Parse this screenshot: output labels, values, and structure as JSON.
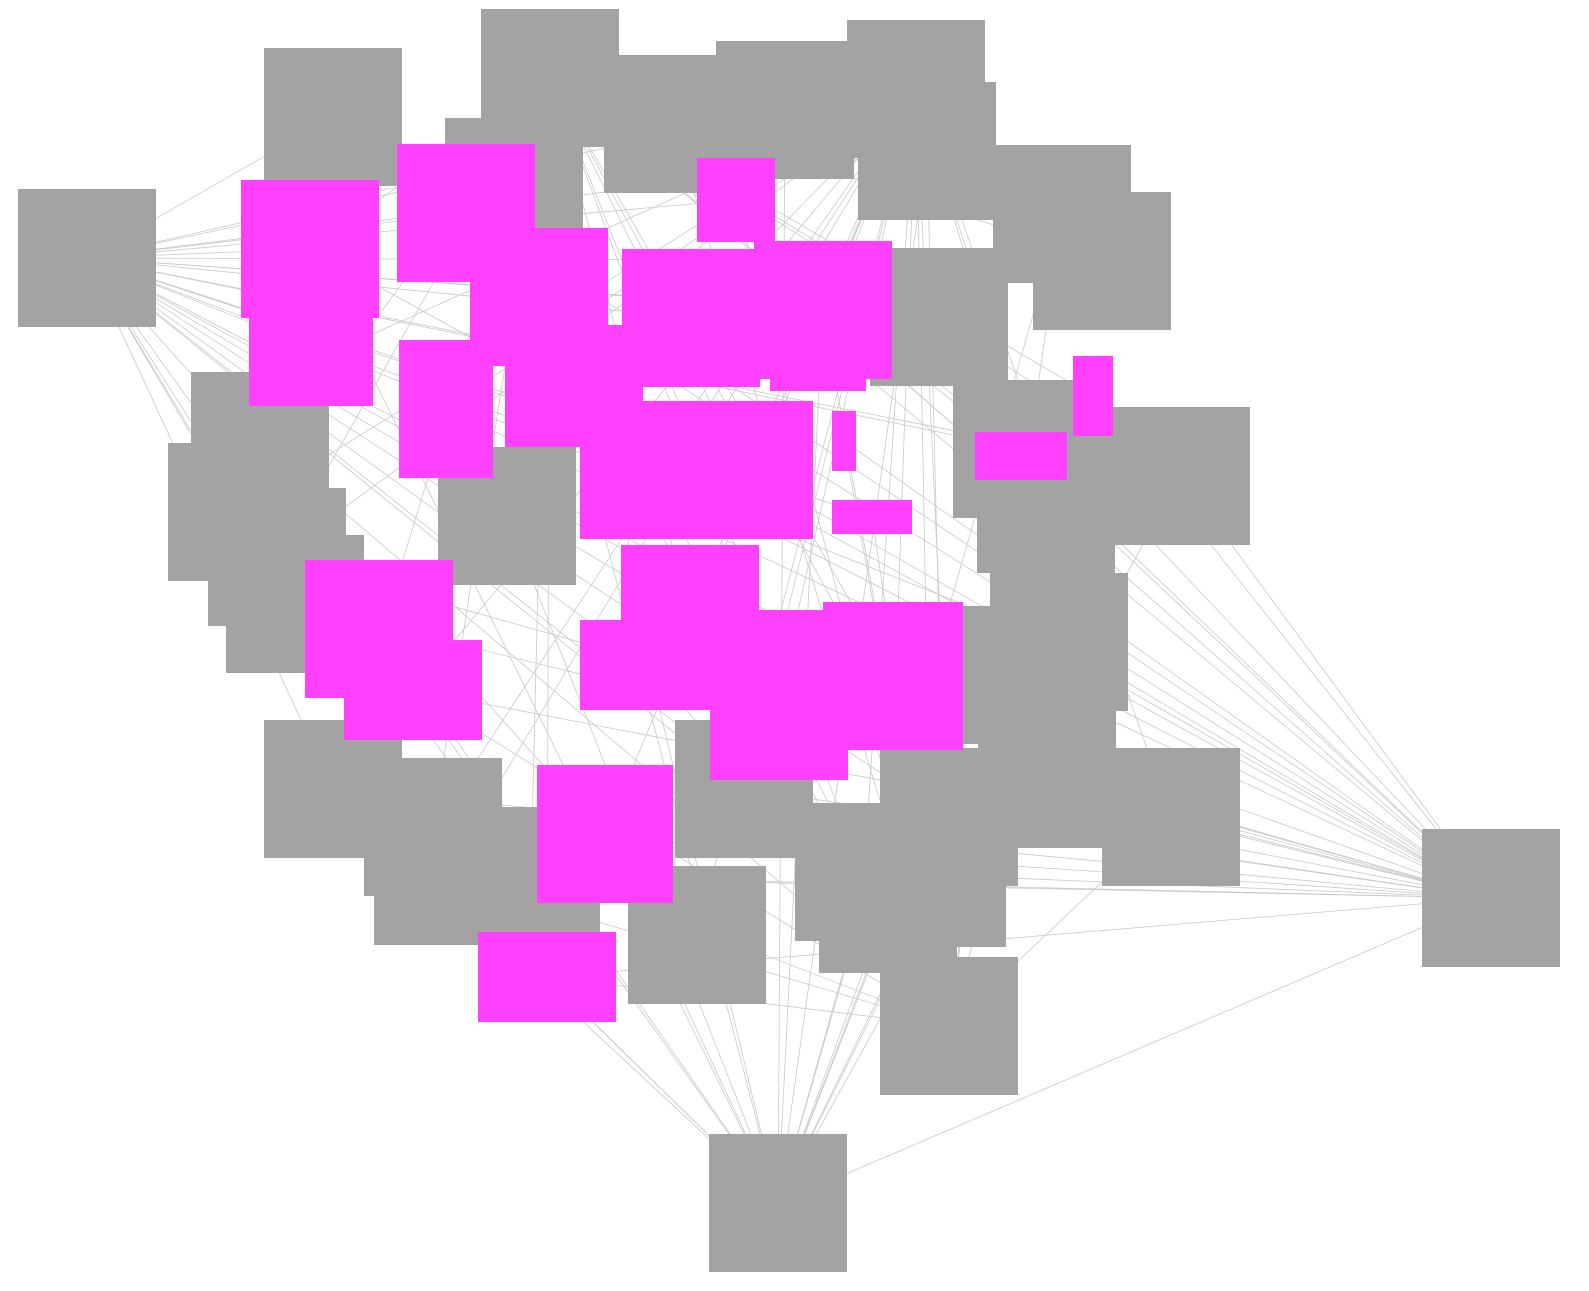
{
  "graph": {
    "background_color": "#ffffff",
    "edge_color": "#c9c9c9",
    "node_colors": {
      "default": "#a3a3a3",
      "highlighted": "#ff40ff"
    },
    "counts": {
      "outer_gray_nodes": 6,
      "core_gray_nodes": 30,
      "core_magenta_nodes": 24
    },
    "labels_visible": false
  }
}
